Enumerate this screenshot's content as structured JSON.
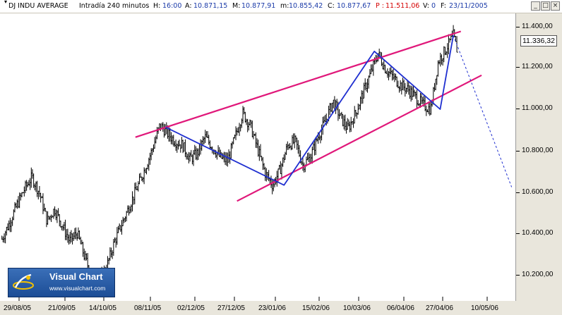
{
  "header": {
    "instrument": "DJ INDU AVERAGE",
    "timeframe": "Intradía 240 minutos",
    "fields": [
      {
        "key": "H:",
        "value": "16:00"
      },
      {
        "key": "A:",
        "value": "10.871,15"
      },
      {
        "key": "M:",
        "value": "10.877,91"
      },
      {
        "key": "m:",
        "value": "10.855,42"
      },
      {
        "key": "C:",
        "value": "10.877,67"
      },
      {
        "key": "P :",
        "value": "11.511,06"
      },
      {
        "key": "V:",
        "value": "0"
      },
      {
        "key": "F:",
        "value": "23/11/2005"
      }
    ]
  },
  "window_buttons": {
    "minimize": "_",
    "restore": "□",
    "close": "×"
  },
  "last_price": "11.336,32",
  "logo": {
    "name": "Visual Chart",
    "url": "www.visualchart.com"
  },
  "colors": {
    "price_bars": "#000000",
    "channel_lines": "#e0187a",
    "swing_lines": "#1f2fd0",
    "projection": "#1f2fd0",
    "plot_background": "#ffffff",
    "frame_background": "#e9e6dc",
    "header_value": "#1a3aa8",
    "header_value_red": "#d40000"
  },
  "chart_data": {
    "type": "line",
    "style": "price bars (OHLC) with trend-channel drawings",
    "y_scale": "linear",
    "ylim": [
      10080,
      11520
    ],
    "y_ticks": [
      "10.200,00",
      "10.400,00",
      "10.600,00",
      "10.800,00",
      "11.000,00",
      "11.200,00",
      "11.400,00"
    ],
    "y_tick_values": [
      10200,
      10400,
      10600,
      10800,
      11000,
      11200,
      11400
    ],
    "x_ticks": [
      "29/08/05",
      "21/09/05",
      "14/10/05",
      "08/11/05",
      "02/12/05",
      "27/12/05",
      "23/01/06",
      "15/02/06",
      "10/03/06",
      "06/04/06",
      "27/04/06",
      "10/05/06"
    ],
    "xlim": [
      "2005-08-21",
      "2006-05-22"
    ],
    "grid": false,
    "series": [
      {
        "values_label": "approximate close path",
        "x": [
          "2005-08-22",
          "2005-08-26",
          "2005-08-30",
          "2005-09-03",
          "2005-09-07",
          "2005-09-11",
          "2005-09-15",
          "2005-09-19",
          "2005-09-23",
          "2005-09-27",
          "2005-10-01",
          "2005-10-05",
          "2005-10-09",
          "2005-10-13",
          "2005-10-17",
          "2005-10-21",
          "2005-10-25",
          "2005-10-29",
          "2005-11-02",
          "2005-11-06",
          "2005-11-10",
          "2005-11-14",
          "2005-11-18",
          "2005-11-22",
          "2005-11-26",
          "2005-11-30",
          "2005-12-04",
          "2005-12-08",
          "2005-12-12",
          "2005-12-16",
          "2005-12-20",
          "2005-12-24",
          "2005-12-28",
          "2006-01-01",
          "2006-01-05",
          "2006-01-09",
          "2006-01-13",
          "2006-01-17",
          "2006-01-21",
          "2006-01-25",
          "2006-01-29",
          "2006-02-02",
          "2006-02-06",
          "2006-02-10",
          "2006-02-14",
          "2006-02-18",
          "2006-02-22",
          "2006-02-26",
          "2006-03-02",
          "2006-03-06",
          "2006-03-10",
          "2006-03-14",
          "2006-03-18",
          "2006-03-22",
          "2006-03-26",
          "2006-03-30",
          "2006-04-03",
          "2006-04-07",
          "2006-04-11",
          "2006-04-15",
          "2006-04-19",
          "2006-04-21"
        ],
        "y": [
          10390,
          10470,
          10560,
          10640,
          10700,
          10620,
          10480,
          10540,
          10460,
          10380,
          10420,
          10300,
          10200,
          10180,
          10260,
          10380,
          10470,
          10560,
          10650,
          10740,
          10840,
          10960,
          10920,
          10880,
          10860,
          10790,
          10820,
          10900,
          10850,
          10800,
          10780,
          10900,
          11020,
          10960,
          10840,
          10720,
          10660,
          10740,
          10860,
          10880,
          10760,
          10800,
          10900,
          10980,
          11080,
          11000,
          10940,
          11020,
          11120,
          11220,
          11320,
          11240,
          11200,
          11160,
          11140,
          11100,
          11060,
          11040,
          11280,
          11340,
          11410,
          11336
        ]
      }
    ],
    "drawings": [
      {
        "type": "channel-upper",
        "x": [
          "2005-11-01",
          "2006-04-23"
        ],
        "y": [
          10900,
          11430
        ]
      },
      {
        "type": "channel-lower",
        "x": [
          "2005-12-25",
          "2006-05-04"
        ],
        "y": [
          10580,
          11210
        ]
      },
      {
        "type": "swing",
        "x": [
          "2005-11-17",
          "2006-01-19",
          "2006-03-08",
          "2006-04-12",
          "2006-04-19"
        ],
        "y": [
          10950,
          10660,
          11330,
          11040,
          11410
        ]
      },
      {
        "type": "projection",
        "x": [
          "2006-04-19",
          "2006-05-20"
        ],
        "y": [
          11410,
          10650
        ]
      }
    ]
  }
}
